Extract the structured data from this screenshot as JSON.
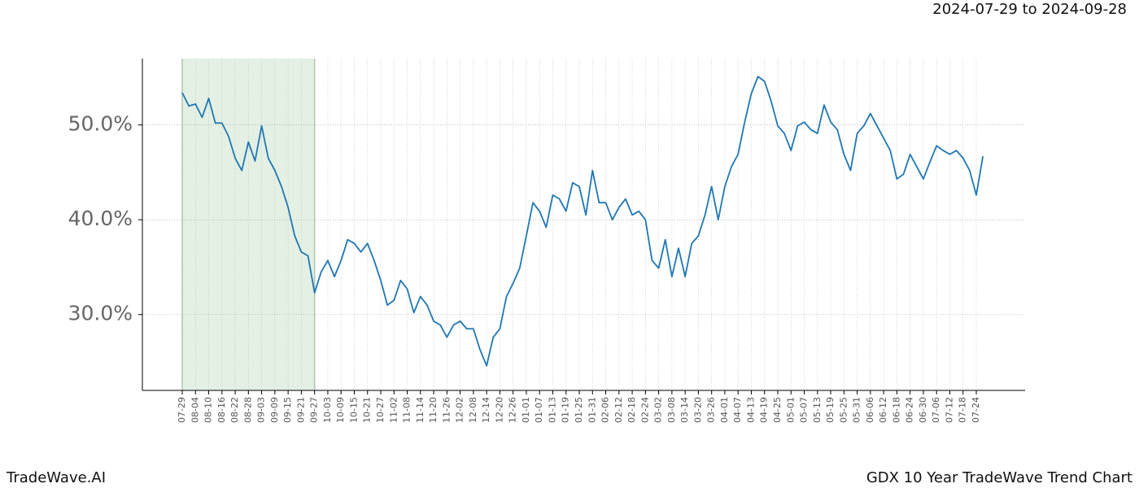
{
  "chart_data": {
    "type": "line",
    "title": "GDX 10 Year TradeWave Trend Chart",
    "subtitle": "2024-07-29 to 2024-09-28",
    "source": "TradeWave.AI",
    "color": "#1f77b4",
    "highlight_range": [
      "07-29",
      "09-27"
    ],
    "highlight_color": "#e3f0e3",
    "grid": true,
    "categories": [
      "07-29",
      null,
      "08-04",
      null,
      "08-10",
      null,
      "08-16",
      null,
      "08-22",
      null,
      "08-28",
      null,
      "09-03",
      null,
      "09-09",
      null,
      "09-15",
      null,
      "09-21",
      null,
      "09-27",
      null,
      "10-03",
      null,
      "10-09",
      null,
      "10-15",
      null,
      "10-21",
      null,
      "10-27",
      null,
      "11-02",
      null,
      "11-08",
      null,
      "11-14",
      null,
      "11-20",
      null,
      "11-26",
      null,
      "12-02",
      null,
      "12-08",
      null,
      "12-14",
      null,
      "12-20",
      null,
      "12-26",
      null,
      "01-01",
      null,
      "01-07",
      null,
      "01-13",
      null,
      "01-19",
      null,
      "01-25",
      null,
      "01-31",
      null,
      "02-06",
      null,
      "02-12",
      null,
      "02-18",
      null,
      "02-24",
      null,
      "03-02",
      null,
      "03-08",
      null,
      "03-14",
      null,
      "03-20",
      null,
      "03-26",
      null,
      "04-01",
      null,
      "04-07",
      null,
      "04-13",
      null,
      "04-19",
      null,
      "04-25",
      null,
      "05-01",
      null,
      "05-07",
      null,
      "05-13",
      null,
      "05-19",
      null,
      "05-25",
      null,
      "05-31",
      null,
      "06-06",
      null,
      "06-12",
      null,
      "06-18",
      null,
      "06-24",
      null,
      "06-30",
      null,
      "07-06",
      null,
      "07-12",
      null,
      "07-18",
      null,
      "07-24",
      null
    ],
    "values": [
      53.4,
      52.0,
      52.2,
      50.8,
      52.8,
      50.2,
      50.2,
      48.8,
      46.5,
      45.2,
      48.2,
      46.2,
      49.9,
      46.5,
      45.2,
      43.5,
      41.3,
      38.3,
      36.6,
      36.2,
      32.3,
      34.5,
      35.7,
      34.0,
      35.7,
      37.9,
      37.5,
      36.6,
      37.5,
      35.7,
      33.6,
      31.0,
      31.5,
      33.6,
      32.7,
      30.2,
      31.9,
      31.0,
      29.3,
      28.9,
      27.6,
      28.9,
      29.3,
      28.5,
      28.5,
      26.3,
      24.6,
      27.6,
      28.5,
      31.9,
      33.3,
      34.9,
      38.3,
      41.8,
      40.9,
      39.2,
      42.6,
      42.2,
      40.9,
      43.9,
      43.5,
      40.5,
      45.2,
      41.8,
      41.8,
      40.0,
      41.3,
      42.2,
      40.5,
      40.9,
      40.0,
      35.7,
      34.9,
      37.9,
      34.0,
      37.0,
      34.0,
      37.5,
      38.3,
      40.5,
      43.5,
      40.0,
      43.5,
      45.6,
      46.9,
      50.3,
      53.3,
      55.1,
      54.6,
      52.5,
      49.9,
      49.1,
      47.3,
      49.9,
      50.3,
      49.5,
      49.1,
      52.1,
      50.3,
      49.5,
      46.9,
      45.2,
      49.1,
      49.9,
      51.2,
      49.9,
      48.6,
      47.3,
      44.3,
      44.8,
      46.9,
      45.6,
      44.3,
      46.1,
      47.8,
      47.3,
      46.9,
      47.3,
      46.5,
      45.2,
      42.6,
      46.7
    ],
    "ylim": [
      22,
      57
    ],
    "yticks": [
      {
        "value": 30,
        "label": "30.0%"
      },
      {
        "value": 40,
        "label": "40.0%"
      },
      {
        "value": 50,
        "label": "50.0%"
      }
    ]
  }
}
